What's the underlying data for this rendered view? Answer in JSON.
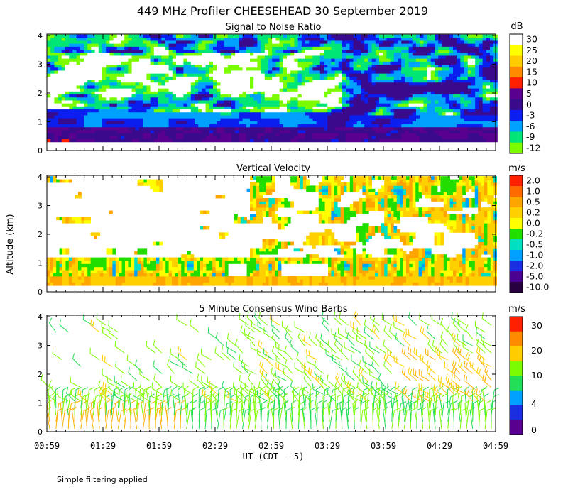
{
  "title": "449 MHz Profiler CHEESEHEAD 30 September 2019",
  "ylabel": "Altitude (km)",
  "xlabel": "UT  (CDT - 5)",
  "footnote": "Simple filtering applied",
  "time_ticks": [
    "00:59",
    "01:29",
    "01:59",
    "02:29",
    "02:59",
    "03:29",
    "03:59",
    "04:29",
    "04:59"
  ],
  "alt_ticks": [
    "0",
    "1",
    "2",
    "3",
    "4"
  ],
  "chart_data": [
    {
      "type": "heatmap",
      "title": "Signal to Noise Ratio",
      "unit": "dB",
      "xlim": [
        "00:59",
        "04:59"
      ],
      "ylim": [
        0,
        4
      ],
      "colorbar_ticks": [
        "30",
        "25",
        "20",
        "15",
        "10",
        "5",
        "0",
        "-3",
        "-6",
        "-9",
        "-12"
      ],
      "colorbar_colors": [
        "#ffffff",
        "#ffff00",
        "#ffcc00",
        "#ff8c00",
        "#ff2000",
        "#5a0090",
        "#3a0a8c",
        "#0a1ef0",
        "#00a0ff",
        "#00e676",
        "#7cfc00"
      ],
      "bands": [
        {
          "alt": [
            0.3,
            0.9
          ],
          "desc": "-3 to 5 dB (dark purple)"
        },
        {
          "alt": [
            0.9,
            1.5
          ],
          "desc": "-6 to 0 dB (blue/cyan)"
        },
        {
          "alt": [
            1.5,
            4.0
          ],
          "desc": "-12 to 30 dB (green/white)"
        }
      ]
    },
    {
      "type": "heatmap",
      "title": "Vertical Velocity",
      "unit": "m/s",
      "xlim": [
        "00:59",
        "04:59"
      ],
      "ylim": [
        0,
        4
      ],
      "colorbar_ticks": [
        "2.0",
        "1.0",
        "0.5",
        "0.2",
        "0.0",
        "-0.2",
        "-0.5",
        "-1.0",
        "-2.0",
        "-5.0",
        "-10.0"
      ],
      "colorbar_colors": [
        "#ff2000",
        "#ff6a00",
        "#ffa500",
        "#ffd000",
        "#ffff00",
        "#22dd00",
        "#00e0c0",
        "#00a0ff",
        "#1a30e0",
        "#4a0090",
        "#280040"
      ]
    },
    {
      "type": "scatter",
      "title": "5 Minute Consensus Wind Barbs",
      "unit": "m/s",
      "xlim": [
        "00:59",
        "04:59"
      ],
      "ylim": [
        0,
        4
      ],
      "colorbar_ticks": [
        "30",
        "20",
        "10",
        "4",
        "0"
      ],
      "colorbar_colors": [
        "#ff2000",
        "#ff8c00",
        "#ffcc00",
        "#7cfc00",
        "#22dd55",
        "#00a0ff",
        "#1a30e0",
        "#5a0090"
      ]
    }
  ]
}
